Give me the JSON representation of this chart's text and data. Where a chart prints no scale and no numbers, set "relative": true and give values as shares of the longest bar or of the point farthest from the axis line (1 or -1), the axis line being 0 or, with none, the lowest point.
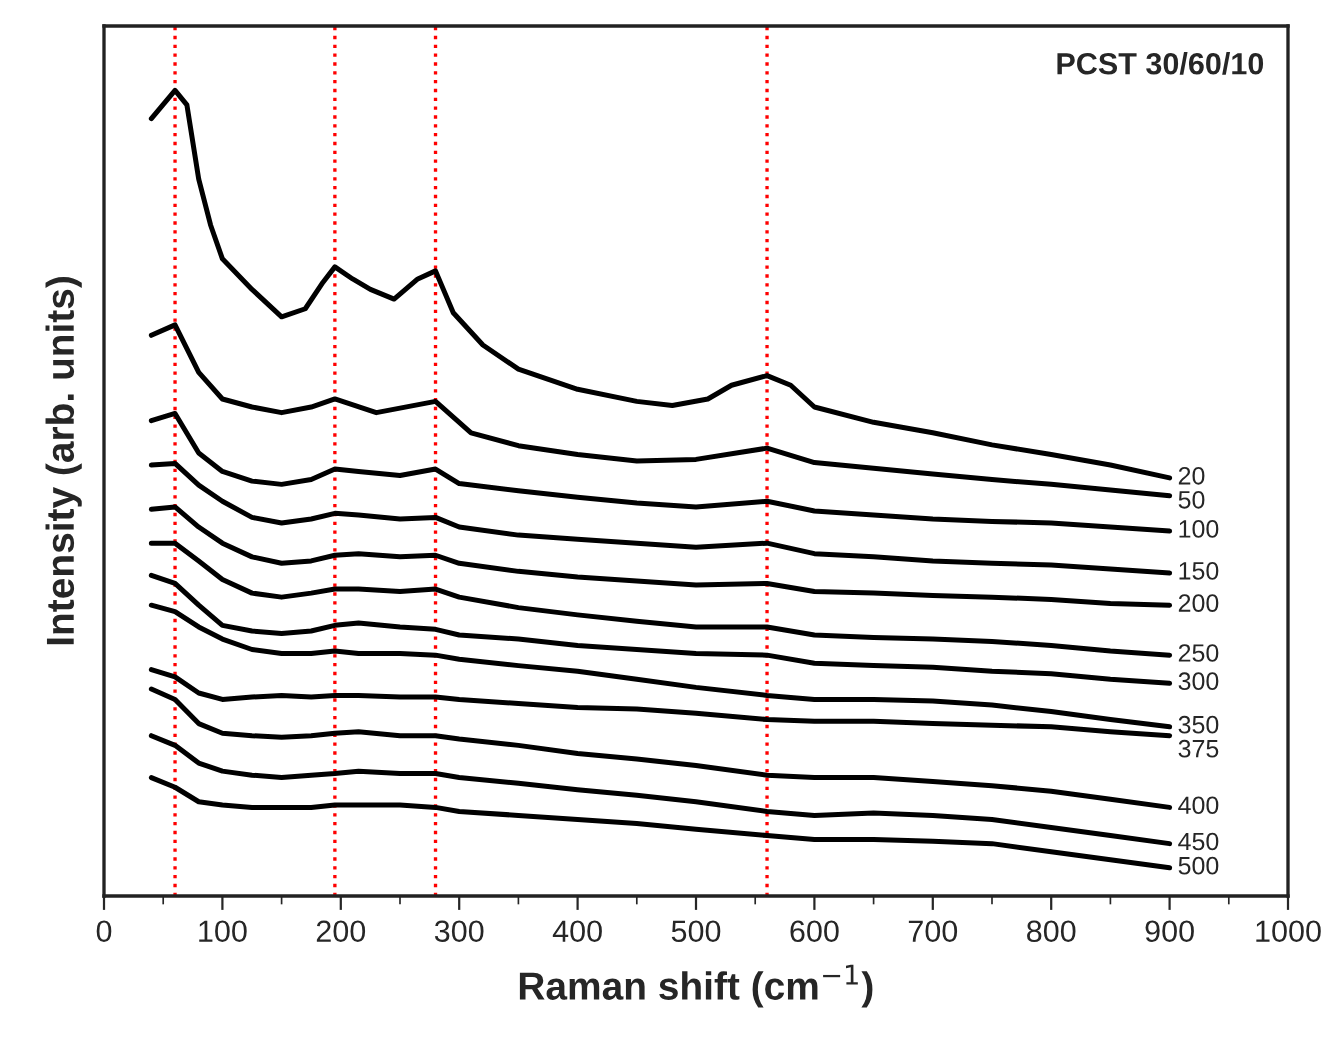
{
  "chart_data": {
    "type": "line",
    "relative": true,
    "xlabel": "Raman shift (cm$^{−1}$)",
    "ylabel": "Intensity (arb. units)",
    "annotations": [
      "PCST 30/60/10"
    ],
    "xlim": [
      0,
      1000
    ],
    "xticks": [
      0,
      100,
      200,
      300,
      400,
      500,
      600,
      700,
      800,
      900,
      1000
    ],
    "tick_labels": "x",
    "grid": false,
    "legend": false,
    "marker": "none",
    "line_style": "solid",
    "ref_lines": [
      {
        "axis": "x",
        "value": 60,
        "color": "#ff0000",
        "line_style": "dotted"
      },
      {
        "axis": "x",
        "value": 195,
        "color": "#ff0000",
        "line_style": "dotted"
      },
      {
        "axis": "x",
        "value": 280,
        "color": "#ff0000",
        "line_style": "dotted"
      },
      {
        "axis": "x",
        "value": 560,
        "color": "#ff0000",
        "line_style": "dotted"
      }
    ],
    "x": [
      40,
      60,
      80,
      100,
      125,
      150,
      175,
      195,
      215,
      250,
      280,
      300,
      350,
      400,
      450,
      500,
      560,
      600,
      650,
      700,
      750,
      800,
      850,
      900
    ],
    "series": [
      {
        "name": "20",
        "color": "#000000",
        "x": [
          40,
          60,
          70,
          80,
          90,
          100,
          125,
          150,
          170,
          185,
          195,
          210,
          225,
          245,
          265,
          280,
          295,
          320,
          350,
          400,
          450,
          480,
          510,
          530,
          560,
          580,
          600,
          650,
          700,
          750,
          800,
          850,
          900
        ],
        "values": [
          0.965,
          1.0,
          0.982,
          0.89,
          0.833,
          0.791,
          0.753,
          0.719,
          0.729,
          0.762,
          0.781,
          0.766,
          0.753,
          0.741,
          0.766,
          0.776,
          0.724,
          0.684,
          0.654,
          0.629,
          0.614,
          0.609,
          0.617,
          0.634,
          0.646,
          0.634,
          0.607,
          0.588,
          0.575,
          0.56,
          0.548,
          0.535,
          0.519
        ]
      },
      {
        "name": "50",
        "color": "#000000",
        "x": [
          40,
          60,
          80,
          100,
          125,
          150,
          175,
          195,
          230,
          280,
          310,
          350,
          400,
          450,
          500,
          560,
          600,
          650,
          700,
          750,
          800,
          850,
          900
        ],
        "values": [
          0.696,
          0.709,
          0.65,
          0.617,
          0.607,
          0.6,
          0.607,
          0.617,
          0.6,
          0.614,
          0.575,
          0.559,
          0.548,
          0.54,
          0.542,
          0.556,
          0.538,
          0.531,
          0.524,
          0.517,
          0.511,
          0.504,
          0.497
        ]
      },
      {
        "name": "100",
        "color": "#000000",
        "values": [
          0.59,
          0.599,
          0.55,
          0.527,
          0.515,
          0.511,
          0.517,
          0.53,
          0.527,
          0.522,
          0.53,
          0.512,
          0.503,
          0.495,
          0.488,
          0.483,
          0.49,
          0.478,
          0.473,
          0.468,
          0.465,
          0.463,
          0.458,
          0.453
        ]
      },
      {
        "name": "150",
        "color": "#000000",
        "values": [
          0.535,
          0.537,
          0.51,
          0.49,
          0.47,
          0.463,
          0.468,
          0.475,
          0.473,
          0.468,
          0.47,
          0.458,
          0.448,
          0.443,
          0.438,
          0.433,
          0.438,
          0.425,
          0.421,
          0.416,
          0.413,
          0.411,
          0.406,
          0.401
        ]
      },
      {
        "name": "200",
        "color": "#000000",
        "values": [
          0.48,
          0.483,
          0.458,
          0.438,
          0.421,
          0.413,
          0.416,
          0.423,
          0.425,
          0.421,
          0.423,
          0.413,
          0.403,
          0.396,
          0.391,
          0.386,
          0.388,
          0.378,
          0.376,
          0.373,
          0.371,
          0.368,
          0.363,
          0.361
        ]
      },
      {
        "name": "250",
        "color": "#000000",
        "values": [
          0.438,
          0.438,
          0.416,
          0.393,
          0.376,
          0.371,
          0.376,
          0.381,
          0.381,
          0.378,
          0.381,
          0.371,
          0.358,
          0.349,
          0.341,
          0.334,
          0.334,
          0.324,
          0.321,
          0.319,
          0.316,
          0.311,
          0.304,
          0.299
        ]
      },
      {
        "name": "300",
        "color": "#000000",
        "values": [
          0.398,
          0.388,
          0.361,
          0.336,
          0.329,
          0.326,
          0.329,
          0.336,
          0.339,
          0.334,
          0.331,
          0.324,
          0.319,
          0.311,
          0.306,
          0.301,
          0.299,
          0.289,
          0.286,
          0.284,
          0.279,
          0.276,
          0.269,
          0.264
        ]
      },
      {
        "name": "350",
        "color": "#000000",
        "values": [
          0.361,
          0.353,
          0.334,
          0.319,
          0.306,
          0.301,
          0.301,
          0.304,
          0.301,
          0.301,
          0.299,
          0.294,
          0.286,
          0.279,
          0.269,
          0.259,
          0.249,
          0.244,
          0.244,
          0.242,
          0.237,
          0.229,
          0.219,
          0.21
        ]
      },
      {
        "name": "375",
        "color": "#000000",
        "values": [
          0.281,
          0.272,
          0.252,
          0.244,
          0.247,
          0.249,
          0.247,
          0.249,
          0.249,
          0.247,
          0.247,
          0.244,
          0.239,
          0.234,
          0.232,
          0.227,
          0.219,
          0.217,
          0.217,
          0.214,
          0.212,
          0.21,
          0.204,
          0.199
        ]
      },
      {
        "name": "400",
        "color": "#000000",
        "values": [
          0.257,
          0.244,
          0.214,
          0.202,
          0.199,
          0.197,
          0.199,
          0.202,
          0.204,
          0.199,
          0.199,
          0.195,
          0.187,
          0.177,
          0.17,
          0.162,
          0.15,
          0.147,
          0.147,
          0.142,
          0.137,
          0.13,
          0.12,
          0.11
        ]
      },
      {
        "name": "450",
        "color": "#000000",
        "values": [
          0.199,
          0.187,
          0.165,
          0.155,
          0.15,
          0.147,
          0.15,
          0.152,
          0.155,
          0.152,
          0.152,
          0.147,
          0.14,
          0.132,
          0.125,
          0.117,
          0.105,
          0.1,
          0.103,
          0.1,
          0.095,
          0.085,
          0.075,
          0.065
        ]
      },
      {
        "name": "500",
        "color": "#000000",
        "values": [
          0.147,
          0.135,
          0.117,
          0.113,
          0.11,
          0.11,
          0.11,
          0.113,
          0.113,
          0.113,
          0.11,
          0.105,
          0.1,
          0.095,
          0.09,
          0.083,
          0.075,
          0.07,
          0.07,
          0.068,
          0.065,
          0.055,
          0.045,
          0.035
        ]
      }
    ]
  }
}
